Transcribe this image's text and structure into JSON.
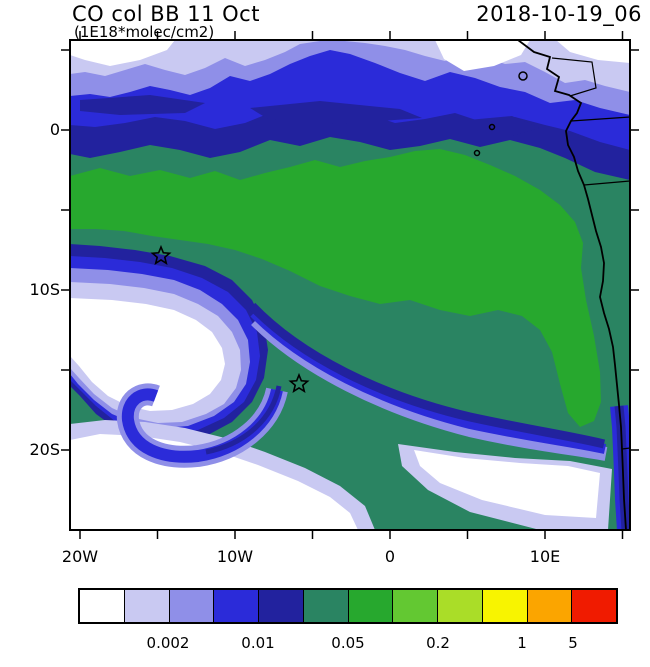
{
  "header": {
    "title": "CO col BB 11 Oct",
    "subtitle": "(1E18*molec/cm2)",
    "run_datetime": "2018-10-19_06"
  },
  "chart_data": {
    "type": "filled_contour_map",
    "title": "CO col BB 11 Oct",
    "units": "1E18*molec/cm2",
    "run_datetime": "2018-10-19_06",
    "region": "eastern tropical South Atlantic and west coast of Africa",
    "x_axis": {
      "tick_labels": [
        "20W",
        "10W",
        "0",
        "10E"
      ]
    },
    "y_axis": {
      "tick_labels": [
        "0",
        "10S",
        "20S"
      ]
    },
    "colorbar": {
      "labels": [
        "0.002",
        "0.01",
        "0.05",
        "0.2",
        "1",
        "5"
      ],
      "colors": [
        "#ffffff",
        "#c9c9f2",
        "#8f8fe8",
        "#2b2bd9",
        "#22229e",
        "#2a8462",
        "#27a82e",
        "#63c832",
        "#aadd28",
        "#f8f400",
        "#fba500",
        "#f01b00"
      ]
    },
    "markers": [
      {
        "symbol": "star",
        "lon_deg": -14.8,
        "lat_deg": -7.9
      },
      {
        "symbol": "star",
        "lon_deg": -5.9,
        "lat_deg": -15.9
      }
    ],
    "field_summary": [
      {
        "color": "white/lavender",
        "where": "low-CO pocket centered near 14W,14S with a spiral hook on its south side, plus the far south-east corner near the Namibian coast and the far north-west corner"
      },
      {
        "color": "blue/navy band",
        "where": "zonal band of enhanced gradient along 0-3N across the whole basin, and hugging the coast near the Gulf of Guinea and near 20S"
      },
      {
        "color": "green",
        "where": "broad biomass-burning CO plume from ~15W near 2S-8S stretching south-east to the Angolan coast down to ~18S"
      },
      {
        "color": "dark teal",
        "where": "background value over most of the tropical South Atlantic"
      },
      {
        "color": "thin navy arc",
        "where": "sharp plume edge sweeping from ~13W,11S south-east to the coast near 10E,19S"
      }
    ]
  }
}
